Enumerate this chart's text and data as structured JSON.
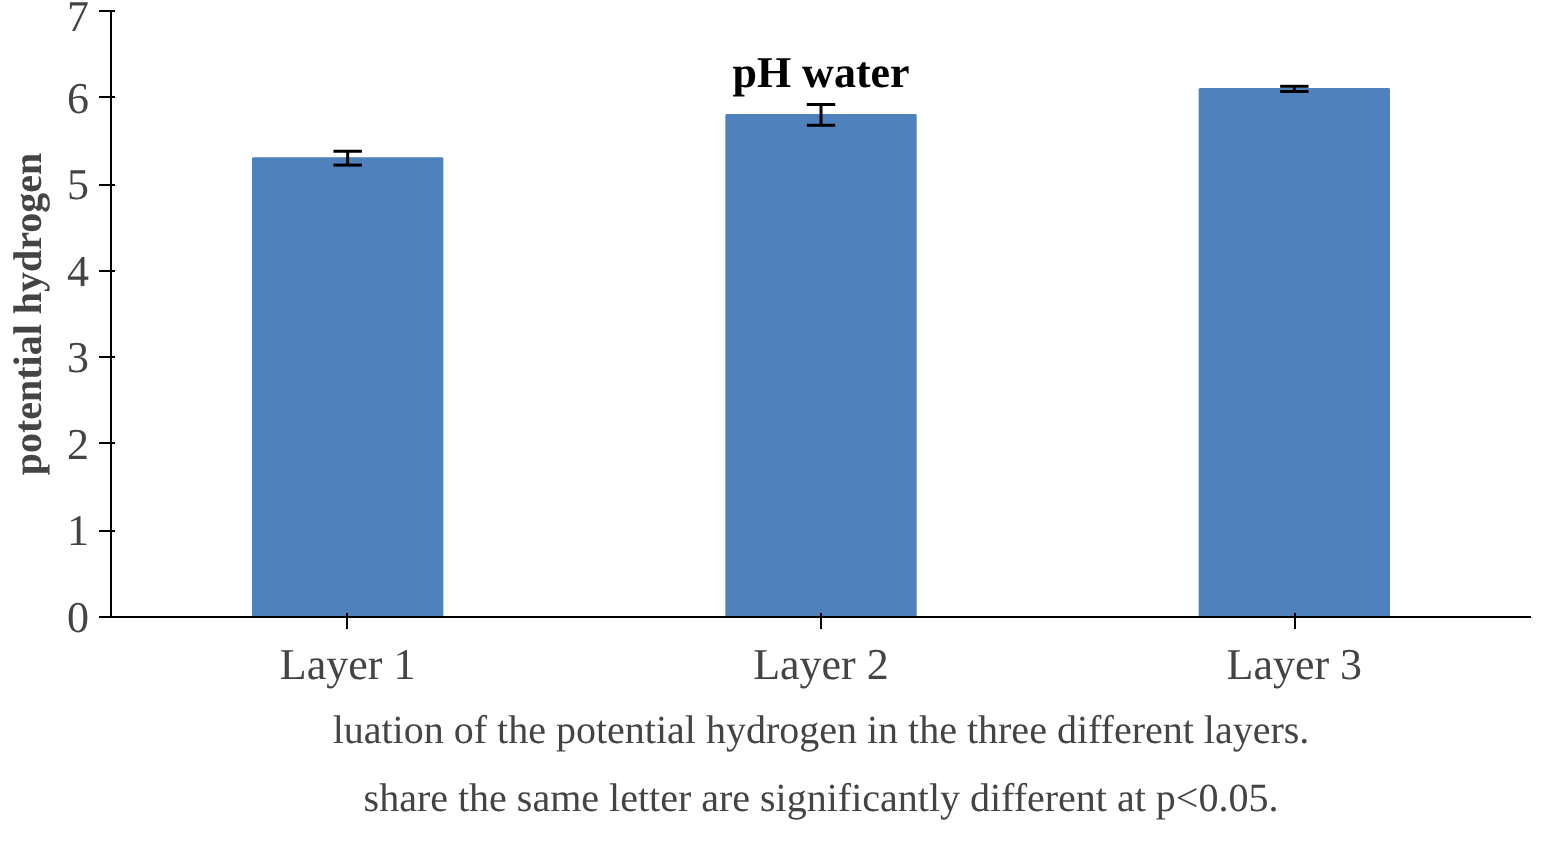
{
  "chart_data": {
    "type": "bar",
    "title": "pH water",
    "ylabel": "potential hydrogen",
    "categories": [
      "Layer 1",
      "Layer 2",
      "Layer 3"
    ],
    "values": [
      5.3,
      5.8,
      6.1
    ],
    "errors": [
      0.08,
      0.12,
      0.03
    ],
    "color": "#4f81bd",
    "ylim": [
      0,
      7
    ],
    "yticks": [
      0,
      1,
      2,
      3,
      4,
      5,
      6,
      7
    ],
    "grid": false,
    "annotations": [
      "luation of the potential hydrogen in the three different layers.",
      "share the same letter are significantly different at p<0.05."
    ]
  }
}
